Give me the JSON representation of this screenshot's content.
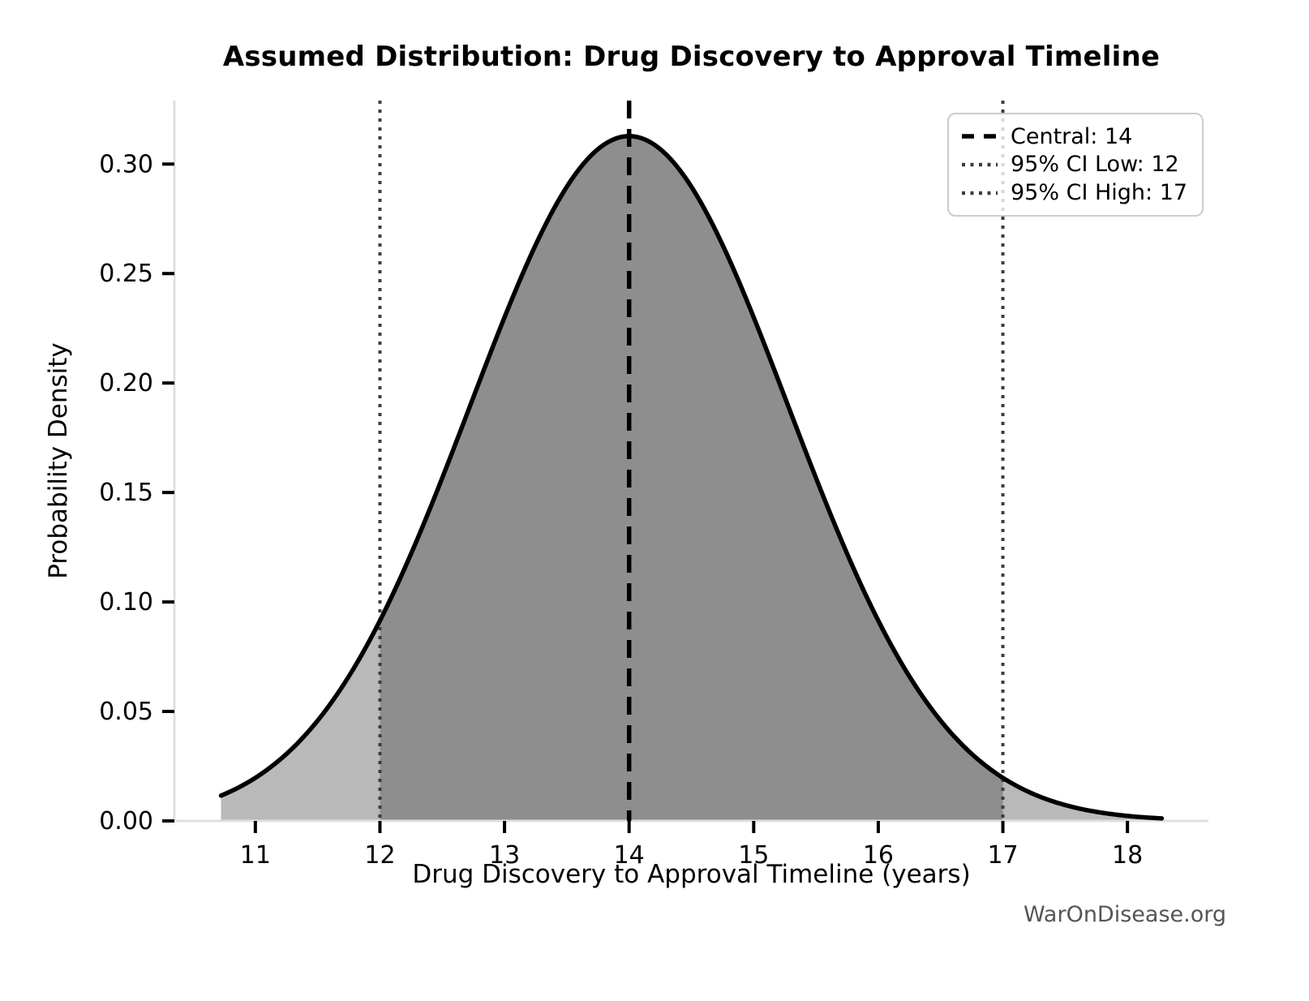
{
  "figure": {
    "background": "#ffffff"
  },
  "chart_data": {
    "type": "area",
    "title": "Assumed Distribution: Drug Discovery to Approval Timeline",
    "xlabel": "Drug Discovery to Approval Timeline (years)",
    "ylabel": "Probability Density",
    "watermark": "WarOnDisease.org",
    "distribution": {
      "shape": "normal",
      "mean": 14,
      "sigma": 1.2755,
      "curve_x_start": 10.7245,
      "curve_x_end": 18.2755,
      "peak_density": 0.3128
    },
    "central": 14,
    "ci_low": 12,
    "ci_high": 17,
    "xticks": [
      11,
      12,
      13,
      14,
      15,
      16,
      17,
      18
    ],
    "yticks": [
      "0.00",
      "0.05",
      "0.10",
      "0.15",
      "0.20",
      "0.25",
      "0.30"
    ],
    "x_range": [
      10.35,
      18.65
    ],
    "y_range": [
      0,
      0.329
    ],
    "grid": false,
    "legend_position": "upper right",
    "legend": [
      {
        "label": "Central: 14",
        "style": "dashed",
        "color": "#000000"
      },
      {
        "label": "95% CI Low: 12",
        "style": "dotted",
        "color": "#3d3d3d"
      },
      {
        "label": "95% CI High: 17",
        "style": "dotted",
        "color": "#3d3d3d"
      }
    ],
    "colors": {
      "curve": "#000000",
      "fill_outer": "#b9b9b9",
      "fill_ci": "#8e8e8e",
      "central_line": "#000000",
      "ci_line": "#3d3d3d",
      "spine": "#e0e0e0",
      "tick": "#000000",
      "tick_label": "#000000",
      "watermark": "#555555"
    }
  }
}
